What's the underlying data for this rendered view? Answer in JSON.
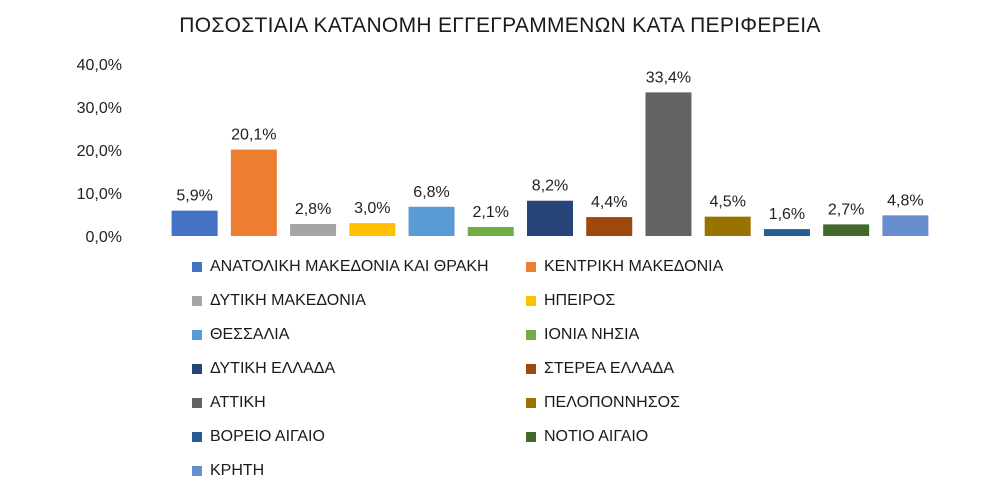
{
  "chart_data": {
    "type": "bar",
    "title": "ΠΟΣΟΣΤΙΑΙΑ ΚΑΤΑΝΟΜΗ ΕΓΓΕΓΡΑΜΜΕΝΩΝ ΚΑΤΑ ΠΕΡΙΦΕΡΕΙΑ",
    "xlabel": "",
    "ylabel": "",
    "ylim": [
      0,
      40
    ],
    "yticks": [
      "0,0%",
      "10,0%",
      "20,0%",
      "30,0%",
      "40,0%"
    ],
    "grid": false,
    "legend_position": "bottom",
    "categories": [
      "ΑΝΑΤΟΛΙΚΗ ΜΑΚΕΔΟΝΙΑ ΚΑΙ ΘΡΑΚΗ",
      "ΚΕΝΤΡΙΚΗ ΜΑΚΕΔΟΝΙΑ",
      "ΔΥΤΙΚΗ ΜΑΚΕΔΟΝΙΑ",
      "ΗΠΕΙΡΟΣ",
      "ΘΕΣΣΑΛΙΑ",
      "ΙΟΝΙΑ ΝΗΣΙΑ",
      "ΔΥΤΙΚΗ ΕΛΛΑΔΑ",
      "ΣΤΕΡΕΑ ΕΛΛΑΔΑ",
      "ΑΤΤΙΚΗ",
      "ΠΕΛΟΠΟΝΝΗΣΟΣ",
      "ΒΟΡΕΙΟ ΑΙΓΑΙΟ",
      "ΝΟΤΙΟ ΑΙΓΑΙΟ",
      "ΚΡΗΤΗ"
    ],
    "values": [
      5.9,
      20.1,
      2.8,
      3.0,
      6.8,
      2.1,
      8.2,
      4.4,
      33.4,
      4.5,
      1.6,
      2.7,
      4.8
    ],
    "data_labels": [
      "5,9%",
      "20,1%",
      "2,8%",
      "3,0%",
      "6,8%",
      "2,1%",
      "8,2%",
      "4,4%",
      "33,4%",
      "4,5%",
      "1,6%",
      "2,7%",
      "4,8%"
    ],
    "colors": [
      "#4472C4",
      "#ED7D31",
      "#A5A5A5",
      "#FFC000",
      "#5B9BD5",
      "#70AD47",
      "#264478",
      "#9E480E",
      "#636363",
      "#997300",
      "#255E91",
      "#43682B",
      "#698ED0"
    ]
  }
}
